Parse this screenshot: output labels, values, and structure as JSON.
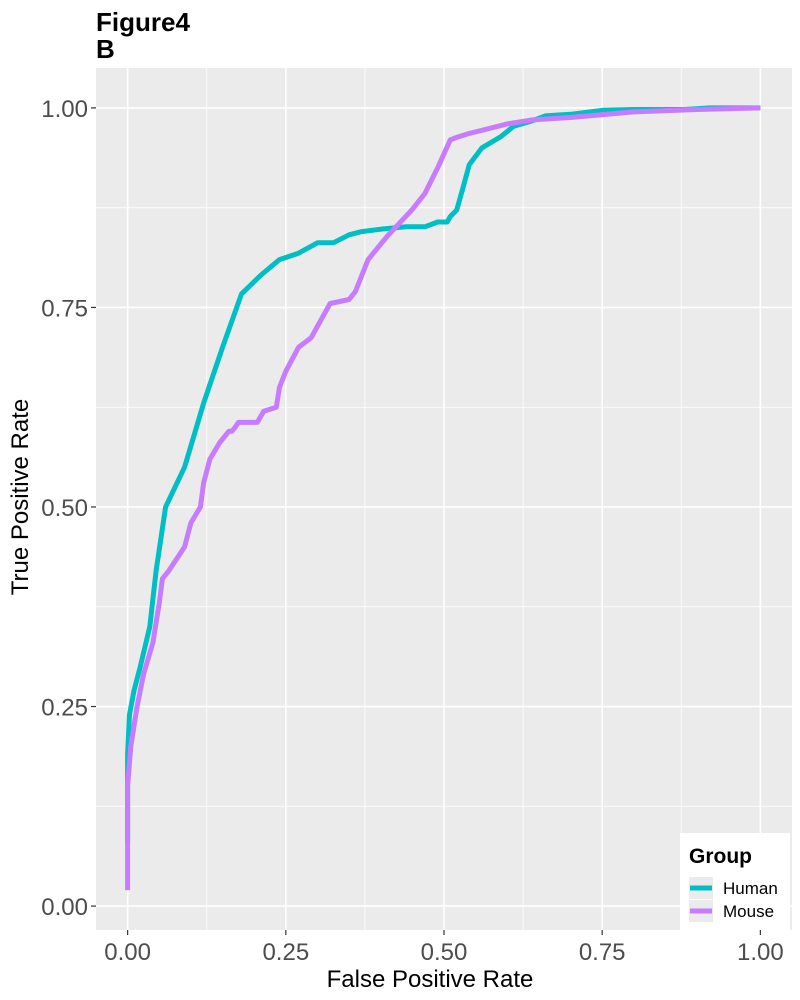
{
  "chart_data": {
    "type": "line",
    "title": "Figure4\n B",
    "xlabel": "False Positive Rate",
    "ylabel": "True Positive Rate",
    "xlim": [
      -0.05,
      1.05
    ],
    "ylim": [
      -0.03,
      1.05
    ],
    "x_ticks": [
      0.0,
      0.25,
      0.5,
      0.75,
      1.0
    ],
    "y_ticks": [
      0.0,
      0.25,
      0.5,
      0.75,
      1.0
    ],
    "x_tick_labels": [
      "0.00",
      "0.25",
      "0.50",
      "0.75",
      "1.00"
    ],
    "y_tick_labels": [
      "0.00",
      "0.25",
      "0.50",
      "0.75",
      "1.00"
    ],
    "grid": true,
    "legend": {
      "title": "Group",
      "position": "bottom-right"
    },
    "series": [
      {
        "name": "Human",
        "color": "#00BFC4",
        "x": [
          0.0,
          0.0,
          0.003,
          0.01,
          0.02,
          0.035,
          0.045,
          0.06,
          0.09,
          0.12,
          0.15,
          0.18,
          0.21,
          0.24,
          0.27,
          0.3,
          0.325,
          0.35,
          0.37,
          0.4,
          0.44,
          0.47,
          0.49,
          0.505,
          0.51,
          0.52,
          0.53,
          0.54,
          0.56,
          0.59,
          0.61,
          0.64,
          0.66,
          0.7,
          0.75,
          0.8,
          0.88,
          0.92,
          1.0
        ],
        "y": [
          0.08,
          0.19,
          0.24,
          0.27,
          0.3,
          0.35,
          0.42,
          0.5,
          0.55,
          0.63,
          0.7,
          0.767,
          0.79,
          0.81,
          0.818,
          0.831,
          0.831,
          0.841,
          0.845,
          0.848,
          0.851,
          0.851,
          0.857,
          0.857,
          0.864,
          0.872,
          0.9,
          0.929,
          0.95,
          0.964,
          0.977,
          0.984,
          0.99,
          0.992,
          0.997,
          0.998,
          0.998,
          1.0,
          1.0
        ]
      },
      {
        "name": "Mouse",
        "color": "#C77CFF",
        "x": [
          0.0,
          0.0,
          0.005,
          0.015,
          0.025,
          0.04,
          0.05,
          0.055,
          0.065,
          0.09,
          0.1,
          0.115,
          0.12,
          0.13,
          0.145,
          0.16,
          0.165,
          0.17,
          0.175,
          0.18,
          0.205,
          0.215,
          0.235,
          0.24,
          0.25,
          0.27,
          0.29,
          0.32,
          0.35,
          0.36,
          0.38,
          0.41,
          0.45,
          0.47,
          0.49,
          0.51,
          0.52,
          0.54,
          0.56,
          0.6,
          0.64,
          0.7,
          0.8,
          0.9,
          1.0
        ],
        "y": [
          0.02,
          0.15,
          0.2,
          0.25,
          0.29,
          0.33,
          0.38,
          0.41,
          0.42,
          0.45,
          0.48,
          0.5,
          0.53,
          0.56,
          0.58,
          0.595,
          0.595,
          0.6,
          0.606,
          0.606,
          0.606,
          0.62,
          0.625,
          0.65,
          0.67,
          0.7,
          0.712,
          0.755,
          0.76,
          0.77,
          0.81,
          0.839,
          0.873,
          0.893,
          0.925,
          0.96,
          0.963,
          0.968,
          0.972,
          0.98,
          0.985,
          0.988,
          0.995,
          0.998,
          1.0
        ]
      }
    ]
  }
}
